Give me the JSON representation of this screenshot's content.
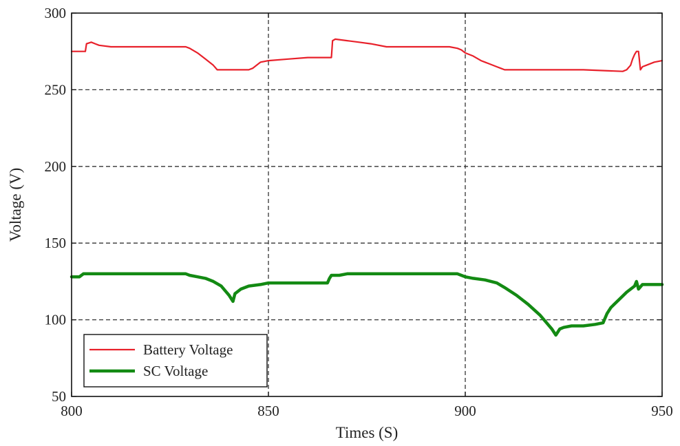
{
  "chart_data": {
    "type": "line",
    "title": "",
    "xlabel": "Times (S)",
    "ylabel": "Voltage (V)",
    "xlim": [
      800,
      950
    ],
    "ylim": [
      50,
      300
    ],
    "xticks": [
      800,
      850,
      900,
      950
    ],
    "yticks": [
      50,
      100,
      150,
      200,
      250,
      300
    ],
    "grid": true,
    "legend_position": "bottom-left",
    "series": [
      {
        "name": "Battery Voltage",
        "color": "#e8202a",
        "x": [
          800,
          803.5,
          803.8,
          805,
          806,
          807,
          810,
          820,
          829,
          830,
          832,
          834,
          836,
          837,
          838,
          840,
          845,
          846,
          847,
          848,
          850,
          855,
          860,
          865,
          866,
          866.3,
          867,
          870,
          873,
          876,
          880,
          890,
          896,
          898,
          899,
          900,
          902,
          904,
          905,
          906,
          908,
          909,
          910,
          920,
          930,
          940,
          941,
          942,
          942.5,
          943,
          943.5,
          944,
          944.5,
          945,
          946,
          948,
          950
        ],
        "y": [
          275,
          275,
          280,
          281,
          280,
          279,
          278,
          278,
          278,
          277,
          274,
          270,
          266,
          263,
          263,
          263,
          263,
          264,
          266,
          268,
          269,
          270,
          271,
          271,
          271,
          282,
          283,
          282,
          281,
          280,
          278,
          278,
          278,
          277,
          276,
          274,
          272,
          269,
          268,
          267,
          265,
          264,
          263,
          263,
          263,
          262,
          263,
          266,
          270,
          273,
          275,
          275,
          263,
          265,
          266,
          268,
          269
        ]
      },
      {
        "name": "SC Voltage",
        "color": "#138a13",
        "x": [
          800,
          802,
          803,
          805,
          810,
          820,
          829,
          830,
          832,
          834,
          836,
          838,
          839,
          840,
          841,
          841.5,
          842,
          843,
          845,
          848,
          850,
          855,
          860,
          865,
          865.5,
          866,
          868,
          870,
          873,
          880,
          890,
          895,
          898,
          899,
          900,
          902,
          905,
          908,
          910,
          913,
          916,
          919,
          921,
          922,
          923,
          924,
          925,
          927,
          930,
          933,
          935,
          936,
          937,
          939,
          941,
          943,
          943.5,
          944,
          945,
          947,
          950
        ],
        "y": [
          128,
          128,
          130,
          130,
          130,
          130,
          130,
          129,
          128,
          127,
          125,
          122,
          119,
          116,
          112,
          117,
          118,
          120,
          122,
          123,
          124,
          124,
          124,
          124,
          127,
          129,
          129,
          130,
          130,
          130,
          130,
          130,
          130,
          129,
          128,
          127,
          126,
          124,
          121,
          116,
          110,
          103,
          97,
          94,
          90,
          94,
          95,
          96,
          96,
          97,
          98,
          104,
          108,
          113,
          118,
          122,
          125,
          120,
          123,
          123,
          123
        ]
      }
    ]
  }
}
